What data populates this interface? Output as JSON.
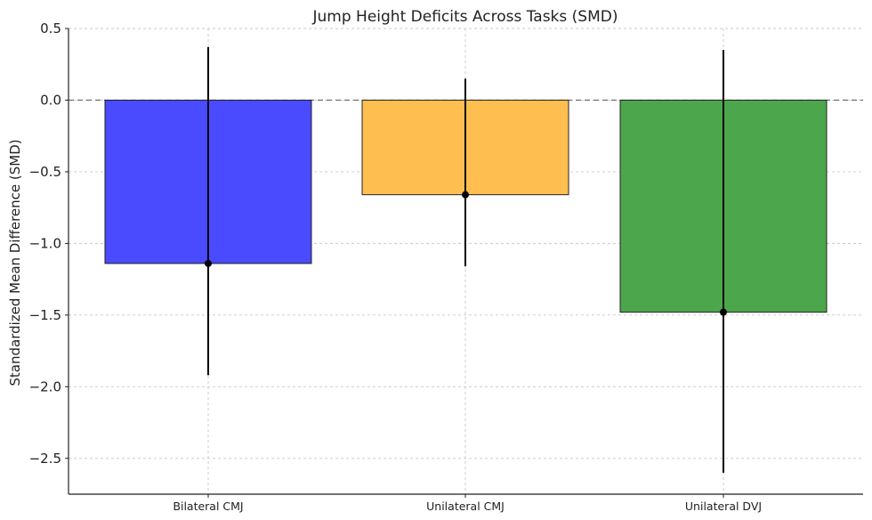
{
  "chart_data": {
    "type": "bar",
    "title": "Jump Height Deficits Across Tasks (SMD)",
    "xlabel": "",
    "ylabel": "Standardized Mean Difference (SMD)",
    "ylim": [
      -2.75,
      0.5
    ],
    "yticks": [
      0.5,
      0.0,
      -0.5,
      -1.0,
      -1.5,
      -2.0,
      -2.5
    ],
    "ytick_labels": [
      "0.5",
      "0.0",
      "−0.5",
      "−1.0",
      "−1.5",
      "−2.0",
      "−2.5"
    ],
    "grid": true,
    "categories": [
      "Bilateral CMJ",
      "Unilateral CMJ",
      "Unilateral DVJ"
    ],
    "values": [
      -1.14,
      -0.66,
      -1.48
    ],
    "ci_lower": [
      -1.92,
      -1.16,
      -2.6
    ],
    "ci_upper": [
      0.37,
      0.15,
      0.35
    ],
    "colors": [
      "#4a4aff",
      "#ffbf50",
      "#4ca64c"
    ],
    "reference_line": 0.0
  }
}
